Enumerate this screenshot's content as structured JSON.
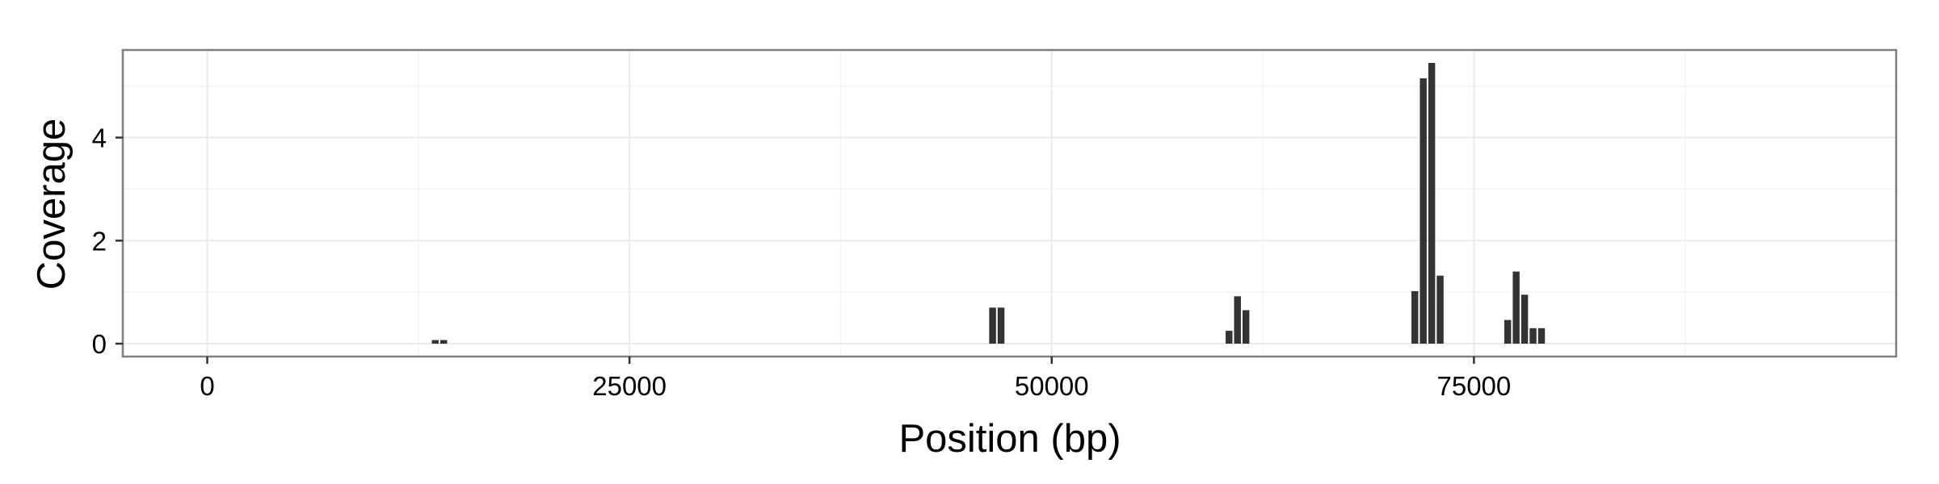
{
  "chart_data": {
    "type": "bar",
    "title": "",
    "xlabel": "Position (bp)",
    "ylabel": "Coverage",
    "xlim": [
      -5000,
      100000
    ],
    "ylim": [
      -0.25,
      5.7
    ],
    "x_ticks": [
      0,
      25000,
      50000,
      75000
    ],
    "x_tick_labels": [
      "0",
      "25000",
      "50000",
      "75000"
    ],
    "y_ticks": [
      0,
      2,
      4
    ],
    "y_tick_labels": [
      "0",
      "2",
      "4"
    ],
    "bin_width": 500,
    "grid": true,
    "legend": "none",
    "bar_color": "#333333",
    "series": [
      {
        "x": [
          13500,
          14000,
          46500,
          47000,
          60500,
          61000,
          61500,
          71500,
          72000,
          72500,
          73000,
          77000,
          77500,
          78000,
          78500,
          79000
        ],
        "values": [
          0.07,
          0.07,
          0.7,
          0.7,
          0.25,
          0.92,
          0.65,
          1.02,
          5.15,
          5.45,
          1.32,
          0.46,
          1.4,
          0.95,
          0.3,
          0.3
        ]
      }
    ]
  }
}
